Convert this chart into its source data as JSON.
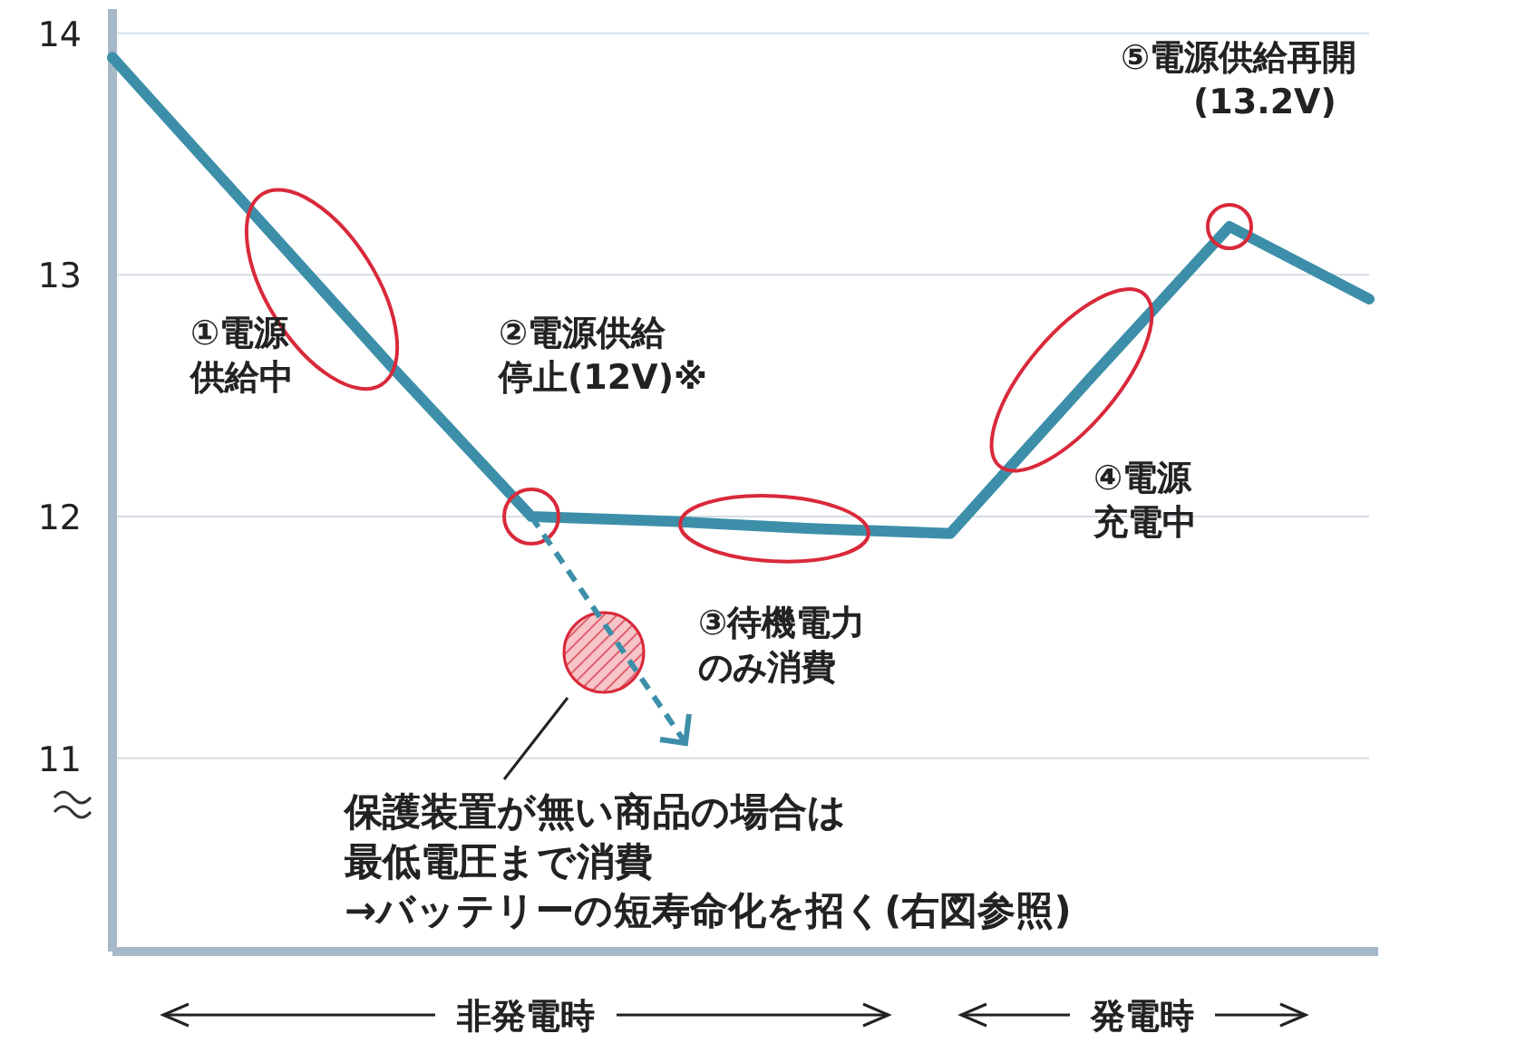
{
  "chart_data": {
    "type": "line",
    "categories": [
      null,
      null,
      null,
      null,
      null,
      null,
      null,
      null,
      null,
      null
    ],
    "series": [
      {
        "color": "#3d8fa9",
        "values": [
          13.9,
          13.26,
          12.62,
          12.0,
          11.98,
          11.95,
          11.93,
          12.57,
          13.2,
          12.9
        ]
      }
    ],
    "ylim": [
      10.2,
      14.1
    ],
    "yticks": [
      11,
      12,
      13,
      14
    ],
    "grid": "y",
    "tick_labels": "y",
    "annotations": [
      "①電源供給中",
      "②電源供給停止(12V)※",
      "③待機電力のみ消費",
      "④電源充電中",
      "⑤電源供給再開(13.2V)",
      "保護装置が無い商品の場合は最低電圧まで消費→バッテリーの短寿命化を招く(右図参照)",
      "非発電時",
      "発電時"
    ]
  }
}
